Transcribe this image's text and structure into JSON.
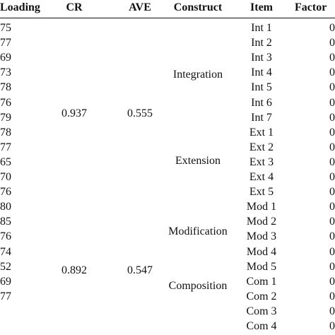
{
  "table": {
    "header": [
      "Loading",
      "CR",
      "AVE",
      "Construct",
      "Item",
      "Factor"
    ],
    "rows": [
      {
        "loading": "75",
        "item": "Int 1",
        "factor": "0"
      },
      {
        "loading": "77",
        "item": "Int 2",
        "factor": "0"
      },
      {
        "loading": "69",
        "item": "Int 3",
        "factor": "0"
      },
      {
        "loading": "73",
        "item": "Int 4",
        "factor": "0"
      },
      {
        "loading": "78",
        "item": "Int 5",
        "factor": "0"
      },
      {
        "loading": "76",
        "item": "Int 6",
        "factor": "0"
      },
      {
        "loading": "79",
        "item": "Int 7",
        "factor": "0"
      },
      {
        "loading": "78",
        "item": "Ext 1",
        "factor": "0"
      },
      {
        "loading": "77",
        "item": "Ext 2",
        "factor": "0"
      },
      {
        "loading": "65",
        "item": "Ext 3",
        "factor": "0"
      },
      {
        "loading": "70",
        "item": "Ext 4",
        "factor": "0"
      },
      {
        "loading": "76",
        "item": "Ext 5",
        "factor": "0"
      },
      {
        "loading": "80",
        "item": "Mod 1",
        "factor": "0"
      },
      {
        "loading": "85",
        "item": "Mod 2",
        "factor": "0"
      },
      {
        "loading": "76",
        "item": "Mod 3",
        "factor": "0"
      },
      {
        "loading": "74",
        "item": "Mod 4",
        "factor": "0"
      },
      {
        "loading": "52",
        "item": "Mod 5",
        "factor": "0"
      },
      {
        "loading": "69",
        "item": "Com 1",
        "factor": "0"
      },
      {
        "loading": "77",
        "item": "Com 2",
        "factor": "0"
      },
      {
        "item": "Com 3",
        "factor": "0"
      },
      {
        "item": "Com 4",
        "factor": "0"
      }
    ],
    "groups": [
      {
        "cr": "0.937",
        "ave": "0.555"
      },
      {
        "cr": "0.892",
        "ave": "0.547"
      }
    ],
    "constructs": [
      "Integration",
      "Extension",
      "Modification",
      "Composition"
    ]
  }
}
